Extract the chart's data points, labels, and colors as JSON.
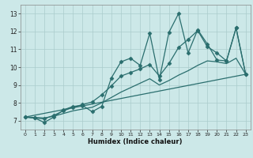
{
  "title": "",
  "xlabel": "Humidex (Indice chaleur)",
  "bg_color": "#cce8e8",
  "grid_color": "#aacccc",
  "line_color": "#2a6e6e",
  "xlim": [
    -0.5,
    23.5
  ],
  "ylim": [
    6.5,
    13.5
  ],
  "xticks": [
    0,
    1,
    2,
    3,
    4,
    5,
    6,
    7,
    8,
    9,
    10,
    11,
    12,
    13,
    14,
    15,
    16,
    17,
    18,
    19,
    20,
    21,
    22,
    23
  ],
  "yticks": [
    7,
    8,
    9,
    10,
    11,
    12,
    13
  ],
  "lines": [
    {
      "x": [
        0,
        1,
        2,
        3,
        4,
        5,
        6,
        7,
        8,
        9,
        10,
        11,
        12,
        13,
        14,
        15,
        16,
        17,
        18,
        19,
        20,
        21,
        22,
        23
      ],
      "y": [
        7.2,
        7.15,
        6.9,
        7.2,
        7.6,
        7.8,
        7.85,
        7.5,
        7.8,
        9.4,
        10.3,
        10.5,
        10.1,
        11.9,
        9.3,
        11.95,
        13.0,
        10.8,
        12.1,
        11.3,
        10.4,
        10.35,
        12.2,
        9.6
      ],
      "marker": "D",
      "markersize": 2.5,
      "linewidth": 0.9,
      "linestyle": "-"
    },
    {
      "x": [
        0,
        1,
        2,
        3,
        4,
        5,
        6,
        7,
        8,
        9,
        10,
        11,
        12,
        13,
        14,
        15,
        16,
        17,
        18,
        19,
        20,
        21,
        22,
        23
      ],
      "y": [
        7.2,
        7.15,
        7.1,
        7.3,
        7.55,
        7.75,
        7.9,
        8.05,
        8.45,
        8.95,
        9.5,
        9.7,
        9.9,
        10.15,
        9.5,
        10.2,
        11.1,
        11.55,
        12.05,
        11.15,
        10.8,
        10.35,
        12.2,
        9.6
      ],
      "marker": "D",
      "markersize": 2.5,
      "linewidth": 0.9,
      "linestyle": "-"
    },
    {
      "x": [
        0,
        1,
        2,
        3,
        4,
        5,
        6,
        7,
        8,
        9,
        10,
        11,
        12,
        13,
        14,
        15,
        16,
        17,
        18,
        19,
        20,
        21,
        22,
        23
      ],
      "y": [
        7.2,
        7.18,
        7.15,
        7.25,
        7.4,
        7.55,
        7.65,
        7.75,
        8.0,
        8.3,
        8.6,
        8.85,
        9.1,
        9.35,
        9.0,
        9.25,
        9.55,
        9.8,
        10.1,
        10.35,
        10.3,
        10.2,
        10.5,
        9.6
      ],
      "marker": null,
      "markersize": 0,
      "linewidth": 0.9,
      "linestyle": "-"
    },
    {
      "x": [
        0,
        23
      ],
      "y": [
        7.2,
        9.6
      ],
      "marker": null,
      "markersize": 0,
      "linewidth": 0.9,
      "linestyle": "-"
    }
  ]
}
